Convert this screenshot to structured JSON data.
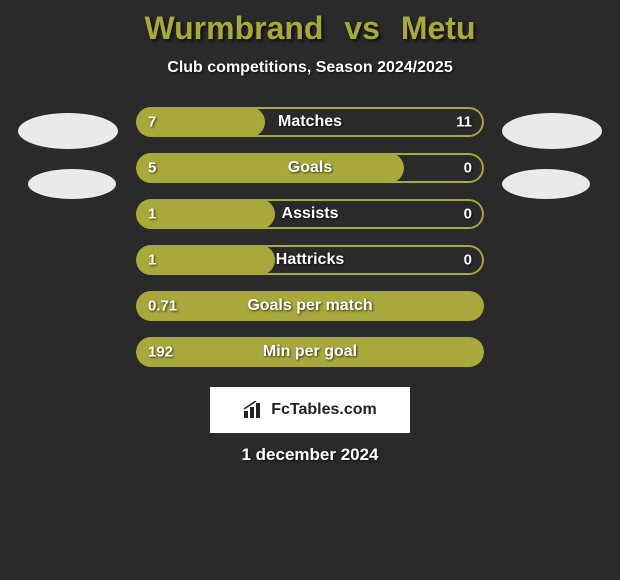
{
  "title": {
    "player1": "Wurmbrand",
    "vs": "vs",
    "player2": "Metu",
    "color": "#a8a83c"
  },
  "subtitle": "Club competitions, Season 2024/2025",
  "colors": {
    "bar_fill": "#a8a83c",
    "bar_border": "#a8a83c",
    "background": "#2a2a2a",
    "text": "#ffffff",
    "avatar": "#eaeaea"
  },
  "bars": [
    {
      "label": "Matches",
      "left_value": "7",
      "right_value": "11",
      "fill_start_pct": 0,
      "fill_width_pct": 37
    },
    {
      "label": "Goals",
      "left_value": "5",
      "right_value": "0",
      "fill_start_pct": 0,
      "fill_width_pct": 77
    },
    {
      "label": "Assists",
      "left_value": "1",
      "right_value": "0",
      "fill_start_pct": 0,
      "fill_width_pct": 40
    },
    {
      "label": "Hattricks",
      "left_value": "1",
      "right_value": "0",
      "fill_start_pct": 0,
      "fill_width_pct": 40
    },
    {
      "label": "Goals per match",
      "left_value": "0.71",
      "right_value": "",
      "fill_start_pct": 0,
      "fill_width_pct": 100
    },
    {
      "label": "Min per goal",
      "left_value": "192",
      "right_value": "",
      "fill_start_pct": 0,
      "fill_width_pct": 100
    }
  ],
  "logo": {
    "text": "FcTables.com"
  },
  "date": "1 december 2024"
}
